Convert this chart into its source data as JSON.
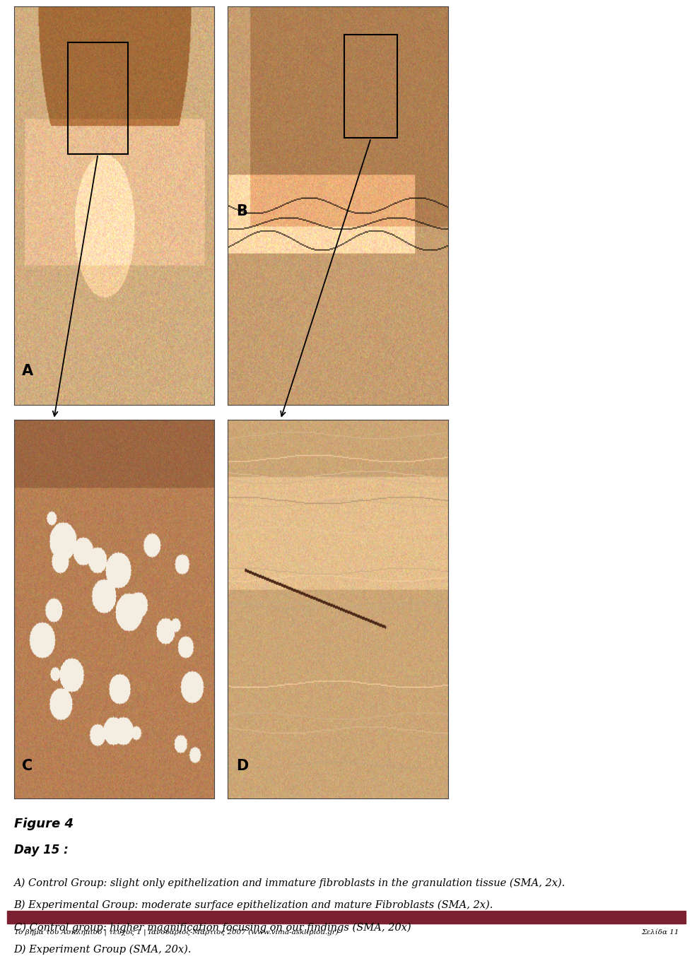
{
  "figure_title": "Figure 4",
  "day_label": "Day 15 :",
  "caption_lines": [
    "A) Control Group: slight only epithelization and immature fibroblasts in the granulation tissue (SMA, 2x).",
    "B) Experimental Group: moderate surface epithelization and mature Fibroblasts (SMA, 2x).",
    "C) Control group: higher magnification focusing on our findings (SMA, 20x)",
    "D) Experiment Group (SMA, 20x)."
  ],
  "footer_left": "To βήμα του Ασκληπιού | τεύχος 1 | Ιανουάριος-Μάρτιος 2007 (www.vima-asklipiou.gr)",
  "footer_right": "Σελίδα 11",
  "background_color": "#ffffff",
  "footer_bar_color": "#7b2030",
  "panel_label_A": "A",
  "panel_label_B": "B",
  "panel_label_C": "C",
  "panel_label_D": "D"
}
